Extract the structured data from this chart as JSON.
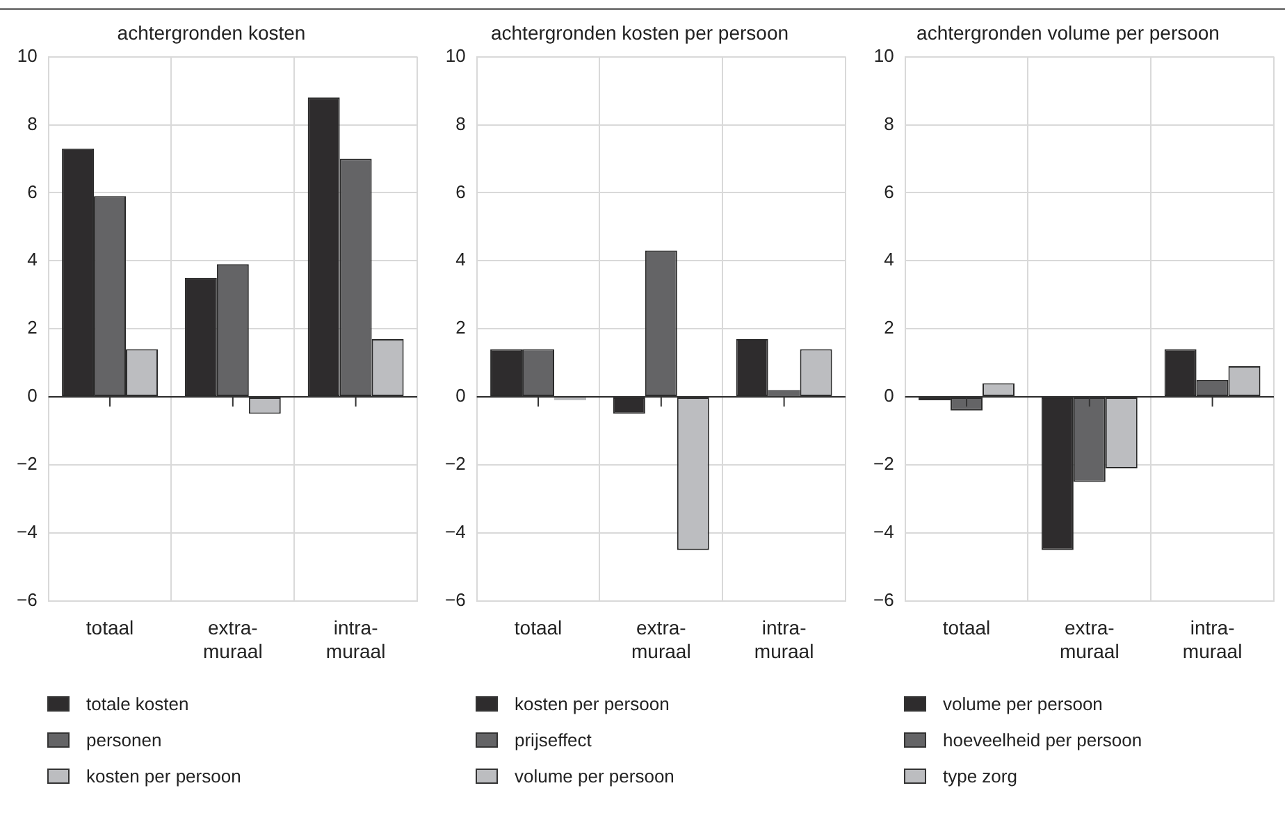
{
  "chart_data": [
    {
      "type": "bar",
      "title": "achtergronden kosten",
      "categories": [
        "totaal",
        "extra-muraal",
        "intra-muraal"
      ],
      "series": [
        {
          "name": "totale kosten",
          "color": "#2e2c2d",
          "values": [
            7.3,
            3.5,
            8.8
          ]
        },
        {
          "name": "personen",
          "color": "#646466",
          "values": [
            5.9,
            3.9,
            7.0
          ]
        },
        {
          "name": "kosten per persoon",
          "color": "#bcbdc0",
          "values": [
            1.4,
            -0.5,
            1.7
          ]
        }
      ],
      "ylim": [
        -6,
        10
      ],
      "yticks": [
        {
          "value": -6,
          "label": "−6"
        },
        {
          "value": -4,
          "label": "−4"
        },
        {
          "value": -2,
          "label": "−2"
        },
        0,
        2,
        4,
        6,
        8,
        10
      ],
      "grid": true,
      "legend": "bottom"
    },
    {
      "type": "bar",
      "title": "achtergronden kosten per persoon",
      "categories": [
        "totaal",
        "extra-muraal",
        "intra-muraal"
      ],
      "series": [
        {
          "name": "kosten per persoon",
          "color": "#2e2c2d",
          "values": [
            1.4,
            -0.5,
            1.7
          ]
        },
        {
          "name": "prijseffect",
          "color": "#646466",
          "values": [
            1.4,
            4.3,
            0.2
          ]
        },
        {
          "name": "volume per persoon",
          "color": "#bcbdc0",
          "values": [
            -0.1,
            -4.5,
            1.4
          ]
        }
      ],
      "ylim": [
        -6,
        10
      ],
      "yticks": [
        {
          "value": -6,
          "label": "−6"
        },
        {
          "value": -4,
          "label": "−4"
        },
        {
          "value": -2,
          "label": "−2"
        },
        0,
        2,
        4,
        6,
        8,
        10
      ],
      "grid": true,
      "legend": "bottom"
    },
    {
      "type": "bar",
      "title": "achtergronden volume per persoon",
      "categories": [
        "totaal",
        "extra-muraal",
        "intra-muraal"
      ],
      "series": [
        {
          "name": "volume per persoon",
          "color": "#2e2c2d",
          "values": [
            -0.1,
            -4.5,
            1.4
          ]
        },
        {
          "name": "hoeveelheid per persoon",
          "color": "#646466",
          "values": [
            -0.4,
            -2.5,
            0.5
          ]
        },
        {
          "name": "type zorg",
          "color": "#bcbdc0",
          "values": [
            0.4,
            -2.1,
            0.9
          ]
        }
      ],
      "ylim": [
        -6,
        10
      ],
      "yticks": [
        {
          "value": -6,
          "label": "−6"
        },
        {
          "value": -4,
          "label": "−4"
        },
        {
          "value": -2,
          "label": "−2"
        },
        0,
        2,
        4,
        6,
        8,
        10
      ],
      "grid": true,
      "legend": "bottom"
    }
  ]
}
